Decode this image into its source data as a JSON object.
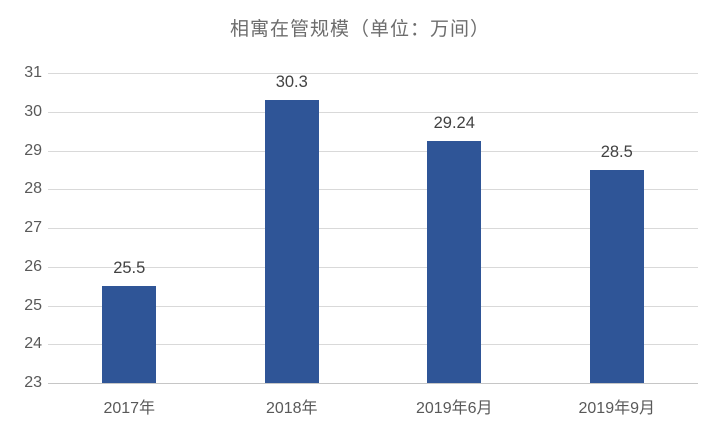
{
  "chart_data": {
    "type": "bar",
    "title": "相寓在管规模（单位：万间）",
    "categories": [
      "2017年",
      "2018年",
      "2019年6月",
      "2019年9月"
    ],
    "values": [
      25.5,
      30.3,
      29.24,
      28.5
    ],
    "value_labels": [
      "25.5",
      "30.3",
      "29.24",
      "28.5"
    ],
    "ylim": [
      23,
      31
    ],
    "ytick_step": 1,
    "ytick_labels": [
      "23",
      "24",
      "25",
      "26",
      "27",
      "28",
      "29",
      "30",
      "31"
    ],
    "xlabel": "",
    "ylabel": "",
    "grid": "horizontal",
    "legend": "none",
    "bar_color": "#2f5597",
    "gridline_color": "#d9d9d9",
    "axis_line_color": "#c6c6c6",
    "title_color": "#6d6d6d",
    "tick_label_color": "#595959",
    "value_label_color": "#424242"
  }
}
